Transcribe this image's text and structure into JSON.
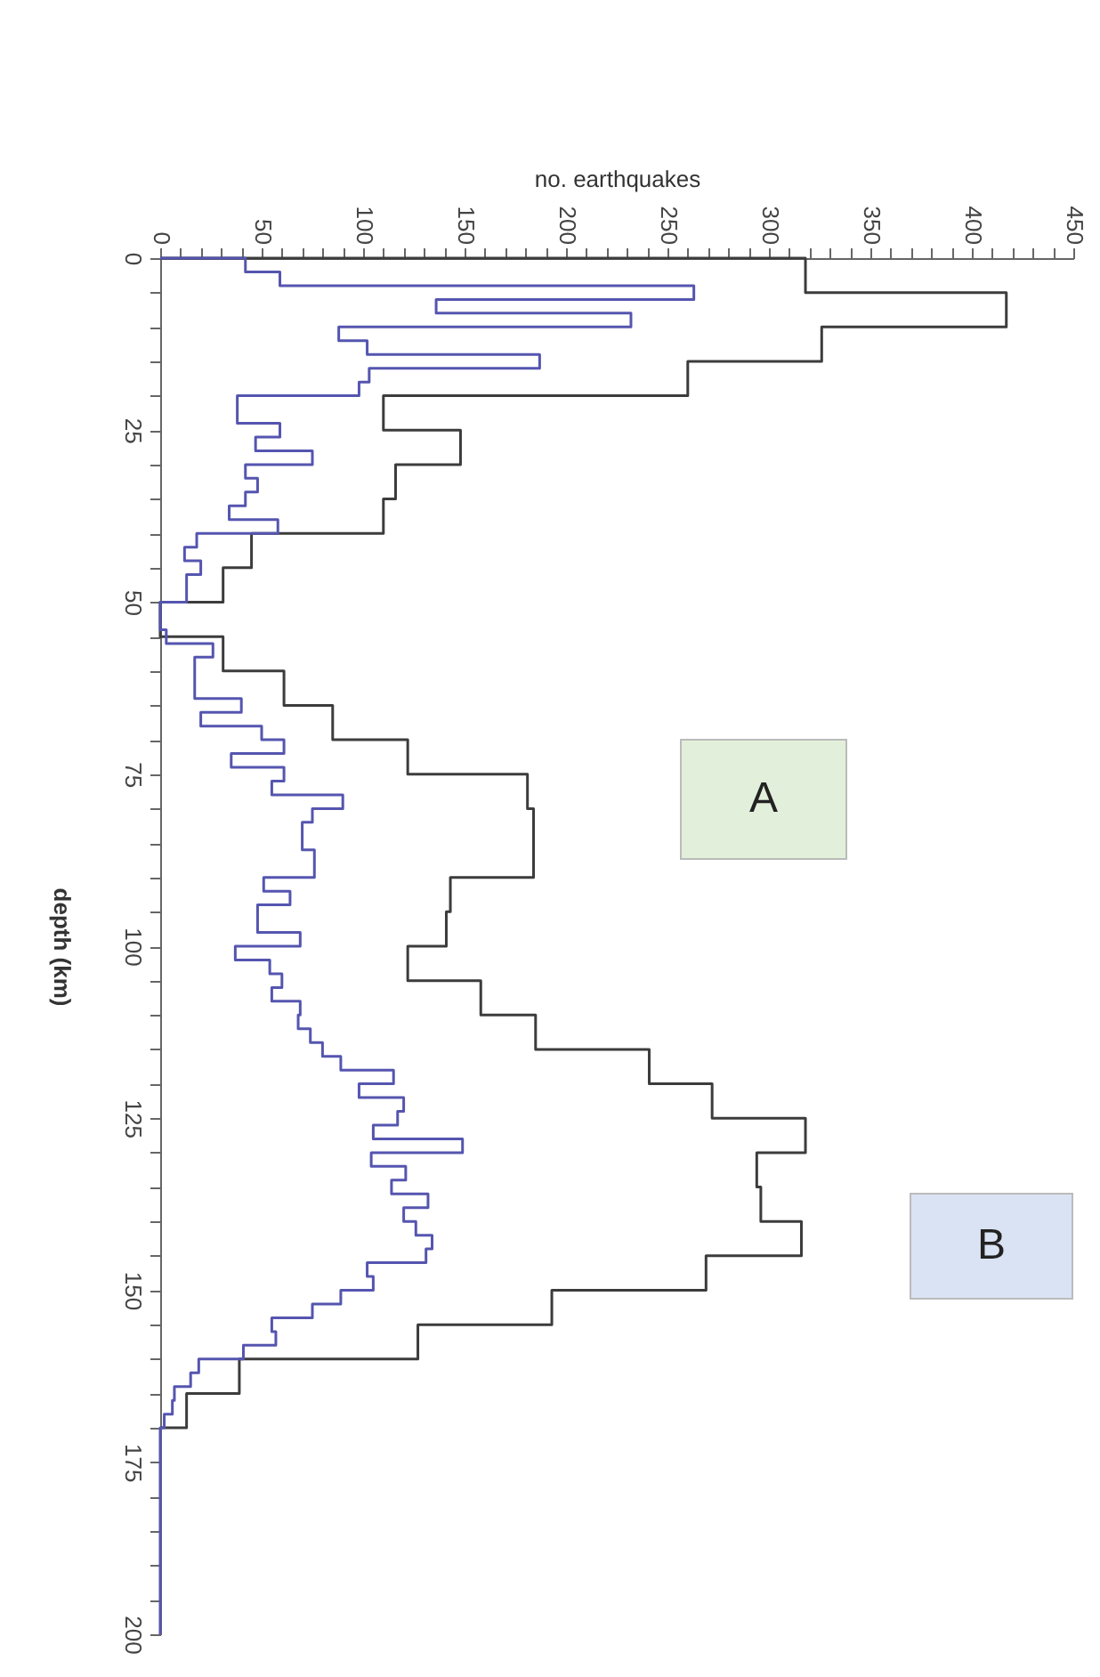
{
  "chart_data": {
    "type": "line",
    "xlabel": "no. earthquakes",
    "ylabel": "depth (km)",
    "xlim": [
      0,
      450
    ],
    "xticks": [
      0,
      {
        "value": 10,
        "label": null
      },
      {
        "value": 20,
        "label": null
      },
      {
        "value": 30,
        "label": null
      },
      {
        "value": 40,
        "label": null
      },
      50,
      {
        "value": 60,
        "label": null
      },
      {
        "value": 70,
        "label": null
      },
      {
        "value": 80,
        "label": null
      },
      {
        "value": 90,
        "label": null
      },
      100,
      {
        "value": 110,
        "label": null
      },
      {
        "value": 120,
        "label": null
      },
      {
        "value": 130,
        "label": null
      },
      {
        "value": 140,
        "label": null
      },
      150,
      {
        "value": 160,
        "label": null
      },
      {
        "value": 170,
        "label": null
      },
      {
        "value": 180,
        "label": null
      },
      {
        "value": 190,
        "label": null
      },
      200,
      {
        "value": 210,
        "label": null
      },
      {
        "value": 220,
        "label": null
      },
      {
        "value": 230,
        "label": null
      },
      {
        "value": 240,
        "label": null
      },
      250,
      {
        "value": 260,
        "label": null
      },
      {
        "value": 270,
        "label": null
      },
      {
        "value": 280,
        "label": null
      },
      {
        "value": 290,
        "label": null
      },
      300,
      {
        "value": 310,
        "label": null
      },
      {
        "value": 320,
        "label": null
      },
      {
        "value": 330,
        "label": null
      },
      {
        "value": 340,
        "label": null
      },
      350,
      {
        "value": 360,
        "label": null
      },
      {
        "value": 370,
        "label": null
      },
      {
        "value": 380,
        "label": null
      },
      {
        "value": 390,
        "label": null
      },
      400,
      {
        "value": 410,
        "label": null
      },
      {
        "value": 420,
        "label": null
      },
      {
        "value": 430,
        "label": null
      },
      {
        "value": 440,
        "label": null
      },
      450
    ],
    "ylim": [
      200,
      0
    ],
    "yticks": [
      0,
      {
        "value": 5,
        "label": null
      },
      {
        "value": 10,
        "label": null
      },
      {
        "value": 15,
        "label": null
      },
      {
        "value": 20,
        "label": null
      },
      25,
      {
        "value": 30,
        "label": null
      },
      {
        "value": 35,
        "label": null
      },
      {
        "value": 40,
        "label": null
      },
      {
        "value": 45,
        "label": null
      },
      50,
      {
        "value": 55,
        "label": null
      },
      {
        "value": 60,
        "label": null
      },
      {
        "value": 65,
        "label": null
      },
      {
        "value": 70,
        "label": null
      },
      75,
      {
        "value": 80,
        "label": null
      },
      {
        "value": 85,
        "label": null
      },
      {
        "value": 90,
        "label": null
      },
      {
        "value": 95,
        "label": null
      },
      100,
      {
        "value": 105,
        "label": null
      },
      {
        "value": 110,
        "label": null
      },
      {
        "value": 115,
        "label": null
      },
      {
        "value": 120,
        "label": null
      },
      125,
      {
        "value": 130,
        "label": null
      },
      {
        "value": 135,
        "label": null
      },
      {
        "value": 140,
        "label": null
      },
      {
        "value": 145,
        "label": null
      },
      150,
      {
        "value": 155,
        "label": null
      },
      {
        "value": 160,
        "label": null
      },
      {
        "value": 165,
        "label": null
      },
      {
        "value": 170,
        "label": null
      },
      175,
      {
        "value": 180,
        "label": null
      },
      {
        "value": 185,
        "label": null
      },
      {
        "value": 190,
        "label": null
      },
      {
        "value": 195,
        "label": null
      },
      200
    ],
    "series": [
      {
        "color": "#3c3c3c",
        "x": [
          0,
          318,
          318,
          417,
          417,
          326,
          326,
          260,
          260,
          110,
          110,
          148,
          148,
          116,
          116,
          110,
          110,
          45,
          45,
          31,
          31,
          0,
          0,
          31,
          31,
          61,
          61,
          85,
          85,
          122,
          122,
          181,
          181,
          184,
          184,
          184,
          184,
          143,
          143,
          141,
          141,
          122,
          122,
          158,
          158,
          185,
          185,
          241,
          241,
          272,
          272,
          318,
          318,
          294,
          294,
          296,
          296,
          316,
          316,
          269,
          269,
          193,
          193,
          127,
          127,
          39,
          39,
          13,
          13,
          0
        ],
        "values": [
          0,
          0,
          5,
          5,
          10,
          10,
          15,
          15,
          20,
          20,
          25,
          25,
          30,
          30,
          35,
          35,
          40,
          40,
          45,
          45,
          50,
          50,
          55,
          55,
          60,
          60,
          65,
          65,
          70,
          70,
          75,
          75,
          80,
          80,
          85,
          85,
          90,
          90,
          95,
          95,
          100,
          100,
          105,
          105,
          110,
          110,
          115,
          115,
          120,
          120,
          125,
          125,
          130,
          130,
          135,
          135,
          140,
          140,
          145,
          145,
          150,
          150,
          155,
          155,
          160,
          160,
          165,
          165,
          170,
          170
        ]
      },
      {
        "color": "#5555b0",
        "x": [
          0,
          42,
          42,
          59,
          59,
          263,
          263,
          136,
          136,
          232,
          232,
          88,
          88,
          102,
          102,
          187,
          187,
          103,
          103,
          98,
          98,
          38,
          38,
          59,
          59,
          47,
          47,
          75,
          75,
          42,
          42,
          48,
          48,
          42,
          42,
          34,
          34,
          58,
          58,
          18,
          18,
          12,
          12,
          20,
          20,
          13,
          13,
          0,
          0,
          3,
          3,
          26,
          26,
          17,
          17,
          40,
          40,
          20,
          20,
          50,
          50,
          61,
          61,
          35,
          35,
          61,
          61,
          55,
          55,
          90,
          90,
          75,
          75,
          70,
          70,
          76,
          76,
          51,
          51,
          64,
          64,
          48,
          48,
          69,
          69,
          37,
          37,
          54,
          54,
          60,
          60,
          55,
          55,
          69,
          69,
          68,
          68,
          74,
          74,
          80,
          80,
          89,
          89,
          115,
          115,
          98,
          98,
          120,
          120,
          117,
          117,
          105,
          105,
          149,
          149,
          104,
          104,
          121,
          121,
          114,
          114,
          132,
          132,
          120,
          120,
          126,
          126,
          134,
          134,
          131,
          131,
          102,
          102,
          105,
          105,
          89,
          89,
          75,
          75,
          55,
          55,
          57,
          57,
          41,
          41,
          19,
          19,
          15,
          15,
          7,
          7,
          6,
          6,
          2,
          2,
          0,
          0
        ],
        "values": [
          0,
          0,
          2,
          2,
          4,
          4,
          6,
          6,
          8,
          8,
          10,
          10,
          12,
          12,
          14,
          14,
          16,
          16,
          18,
          18,
          20,
          20,
          24,
          24,
          26,
          26,
          28,
          28,
          30,
          30,
          32,
          32,
          34,
          34,
          36,
          36,
          38,
          38,
          40,
          40,
          42,
          42,
          44,
          44,
          46,
          46,
          50,
          50,
          54,
          54,
          56,
          56,
          58,
          58,
          64,
          64,
          66,
          66,
          68,
          68,
          70,
          70,
          72,
          72,
          74,
          74,
          76,
          76,
          78,
          78,
          80,
          80,
          82,
          82,
          86,
          86,
          90,
          90,
          92,
          92,
          94,
          94,
          98,
          98,
          100,
          100,
          102,
          102,
          104,
          104,
          106,
          106,
          108,
          108,
          110,
          110,
          112,
          112,
          114,
          114,
          116,
          116,
          118,
          118,
          120,
          120,
          122,
          122,
          124,
          124,
          126,
          126,
          128,
          128,
          130,
          130,
          132,
          132,
          134,
          134,
          136,
          136,
          138,
          138,
          140,
          140,
          142,
          142,
          144,
          144,
          146,
          146,
          148,
          148,
          150,
          150,
          152,
          152,
          154,
          154,
          156,
          156,
          158,
          158,
          160,
          160,
          162,
          162,
          164,
          164,
          166,
          166,
          168,
          168,
          170,
          170,
          200
        ]
      }
    ],
    "annotations": [
      "A",
      "B"
    ]
  }
}
